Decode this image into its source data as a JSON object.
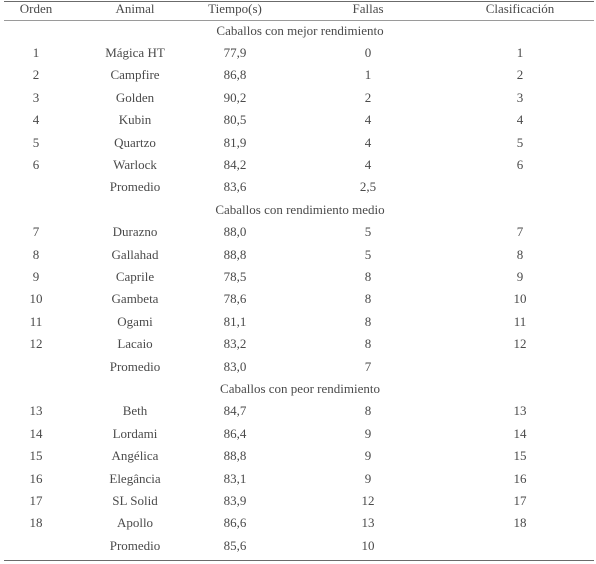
{
  "headers": {
    "orden": "Orden",
    "animal": "Animal",
    "tiempo": "Tiempo(s)",
    "fallas": "Fallas",
    "clasificacion": "Clasificación"
  },
  "groups": [
    {
      "title": "Caballos  con mejor rendimiento",
      "rows": [
        {
          "orden": "1",
          "animal": "Mágica HT",
          "tiempo": "77,9",
          "fallas": "0",
          "clas": "1"
        },
        {
          "orden": "2",
          "animal": "Campfire",
          "tiempo": "86,8",
          "fallas": "1",
          "clas": "2"
        },
        {
          "orden": "3",
          "animal": "Golden",
          "tiempo": "90,2",
          "fallas": "2",
          "clas": "3"
        },
        {
          "orden": "4",
          "animal": "Kubin",
          "tiempo": "80,5",
          "fallas": "4",
          "clas": "4"
        },
        {
          "orden": "5",
          "animal": "Quartzo",
          "tiempo": "81,9",
          "fallas": "4",
          "clas": "5"
        },
        {
          "orden": "6",
          "animal": "Warlock",
          "tiempo": "84,2",
          "fallas": "4",
          "clas": "6"
        }
      ],
      "promedio": {
        "label": "Promedio",
        "tiempo": "83,6",
        "fallas": "2,5"
      }
    },
    {
      "title": "Caballos  con rendimiento medio",
      "rows": [
        {
          "orden": "7",
          "animal": "Durazno",
          "tiempo": "88,0",
          "fallas": "5",
          "clas": "7"
        },
        {
          "orden": "8",
          "animal": "Gallahad",
          "tiempo": "88,8",
          "fallas": "5",
          "clas": "8"
        },
        {
          "orden": "9",
          "animal": "Caprile",
          "tiempo": "78,5",
          "fallas": "8",
          "clas": "9"
        },
        {
          "orden": "10",
          "animal": "Gambeta",
          "tiempo": "78,6",
          "fallas": "8",
          "clas": "10"
        },
        {
          "orden": "11",
          "animal": "Ogami",
          "tiempo": "81,1",
          "fallas": "8",
          "clas": "11"
        },
        {
          "orden": "12",
          "animal": "Lacaio",
          "tiempo": "83,2",
          "fallas": "8",
          "clas": "12"
        }
      ],
      "promedio": {
        "label": "Promedio",
        "tiempo": "83,0",
        "fallas": "7"
      }
    },
    {
      "title": "Caballos  con peor rendimiento",
      "rows": [
        {
          "orden": "13",
          "animal": "Beth",
          "tiempo": "84,7",
          "fallas": "8",
          "clas": "13"
        },
        {
          "orden": "14",
          "animal": "Lordami",
          "tiempo": "86,4",
          "fallas": "9",
          "clas": "14"
        },
        {
          "orden": "15",
          "animal": "Angélica",
          "tiempo": "88,8",
          "fallas": "9",
          "clas": "15"
        },
        {
          "orden": "16",
          "animal": "Elegância",
          "tiempo": "83,1",
          "fallas": "9",
          "clas": "16"
        },
        {
          "orden": "17",
          "animal": "SL Solid",
          "tiempo": "83,9",
          "fallas": "12",
          "clas": "17"
        },
        {
          "orden": "18",
          "animal": "Apollo",
          "tiempo": "86,6",
          "fallas": "13",
          "clas": "18"
        }
      ],
      "promedio": {
        "label": "Promedio",
        "tiempo": "85,6",
        "fallas": "10"
      }
    }
  ]
}
